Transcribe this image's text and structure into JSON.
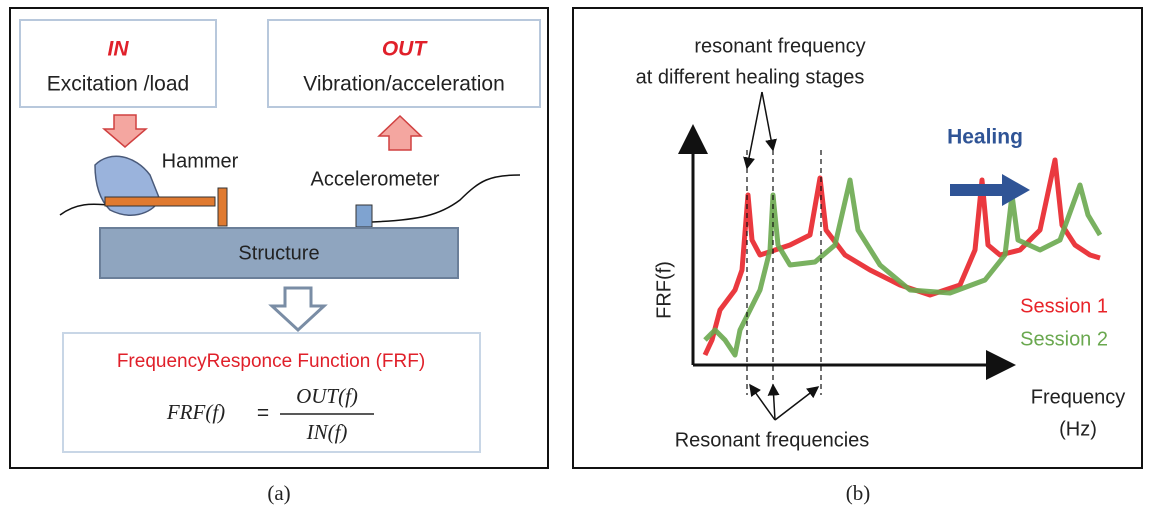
{
  "panel_a": {
    "in_label": "IN",
    "in_text": "Excitation /load",
    "out_label": "OUT",
    "out_text": "Vibration/acceleration",
    "hammer": "Hammer",
    "accelerometer": "Accelerometer",
    "structure": "Structure",
    "frf_title": "FrequencyResponce Function (FRF)",
    "formula_lhs": "FRF(f)",
    "formula_eq": "=",
    "formula_num": "OUT(f)",
    "formula_den": "IN(f)",
    "caption": "(a)"
  },
  "panel_b": {
    "annotation_top": [
      "resonant frequency",
      "at different healing stages"
    ],
    "healing": "Healing",
    "y_label": "FRF(f)",
    "x_label": [
      "Frequency",
      "(Hz)"
    ],
    "legend": [
      "Session 1",
      "Session 2"
    ],
    "annotation_bottom": "Resonant frequencies",
    "caption": "(b)"
  }
}
